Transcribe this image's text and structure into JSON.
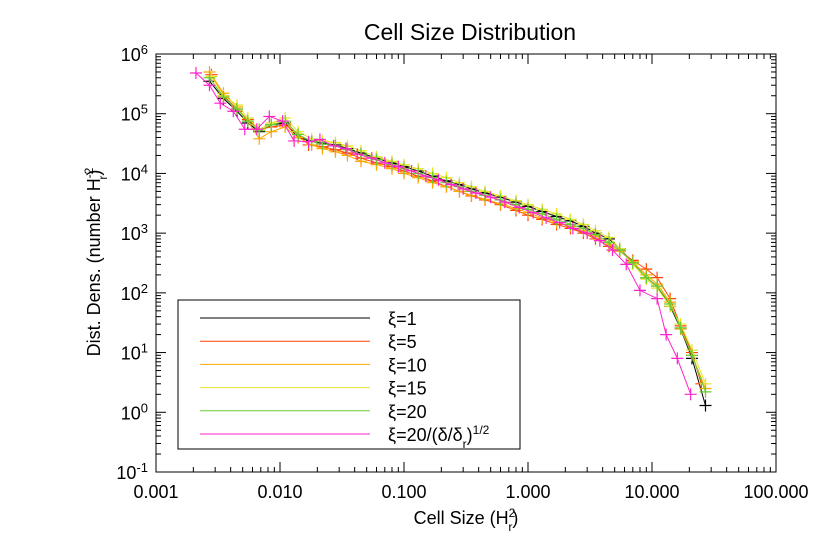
{
  "chart_data": {
    "type": "line",
    "title": "Cell Size Distribution",
    "xlabel": "Cell Size (H",
    "xlabel_sup": "2",
    "xlabel_sub": "r",
    "xlabel_end": ")",
    "ylabel": "Dist. Dens. (number H",
    "ylabel_sup": "-2",
    "ylabel_sub": "r",
    "ylabel_end": ")",
    "x_scale": "log",
    "y_scale": "log",
    "xlim": [
      0.001,
      100
    ],
    "ylim": [
      0.1,
      1000000
    ],
    "x_ticks": [
      {
        "value": 0.001,
        "label": "0.001"
      },
      {
        "value": 0.01,
        "label": "0.010"
      },
      {
        "value": 0.1,
        "label": "0.100"
      },
      {
        "value": 1,
        "label": "1.000"
      },
      {
        "value": 10,
        "label": "10.000"
      },
      {
        "value": 100,
        "label": "100.000"
      }
    ],
    "y_ticks": [
      {
        "value": 0.1,
        "base": "10",
        "exp": "-1"
      },
      {
        "value": 1,
        "base": "10",
        "exp": "0"
      },
      {
        "value": 10,
        "base": "10",
        "exp": "1"
      },
      {
        "value": 100,
        "base": "10",
        "exp": "2"
      },
      {
        "value": 1000,
        "base": "10",
        "exp": "3"
      },
      {
        "value": 10000,
        "base": "10",
        "exp": "4"
      },
      {
        "value": 100000,
        "base": "10",
        "exp": "5"
      },
      {
        "value": 1000000,
        "base": "10",
        "exp": "6"
      }
    ],
    "legend_position": "bottom-left",
    "grid": false,
    "marker": "+",
    "series": [
      {
        "name": "ξ=1",
        "color": "#000000",
        "points": [
          [
            0.0027,
            350000.0
          ],
          [
            0.0035,
            180000.0
          ],
          [
            0.0045,
            110000.0
          ],
          [
            0.0055,
            70000.0
          ],
          [
            0.0068,
            50000.0
          ],
          [
            0.0085,
            65000.0
          ],
          [
            0.011,
            70000.0
          ],
          [
            0.014,
            40000.0
          ],
          [
            0.018,
            35000.0
          ],
          [
            0.022,
            32000.0
          ],
          [
            0.028,
            30000.0
          ],
          [
            0.035,
            26000.0
          ],
          [
            0.045,
            22000.0
          ],
          [
            0.06,
            18000.0
          ],
          [
            0.08,
            15000.0
          ],
          [
            0.1,
            13000.0
          ],
          [
            0.13,
            11000.0
          ],
          [
            0.17,
            9000.0
          ],
          [
            0.22,
            7500.0
          ],
          [
            0.28,
            6500.0
          ],
          [
            0.35,
            5500.0
          ],
          [
            0.45,
            4700.0
          ],
          [
            0.6,
            4000.0
          ],
          [
            0.8,
            3300.0
          ],
          [
            1.0,
            2800.0
          ],
          [
            1.3,
            2300.0
          ],
          [
            1.7,
            1900.0
          ],
          [
            2.2,
            1600.0
          ],
          [
            2.8,
            1300.0
          ],
          [
            3.5,
            1000.0
          ],
          [
            4.5,
            800
          ],
          [
            5.5,
            550
          ],
          [
            7.0,
            320
          ],
          [
            9.0,
            180
          ],
          [
            11.0,
            130
          ],
          [
            14.0,
            60
          ],
          [
            17.0,
            25
          ],
          [
            21.0,
            8
          ],
          [
            27.0,
            1.3
          ]
        ]
      },
      {
        "name": "ξ=5",
        "color": "#ff4500",
        "points": [
          [
            0.0028,
            450000.0
          ],
          [
            0.0035,
            200000.0
          ],
          [
            0.0045,
            120000.0
          ],
          [
            0.0055,
            80000.0
          ],
          [
            0.0068,
            55000.0
          ],
          [
            0.0085,
            60000.0
          ],
          [
            0.011,
            65000.0
          ],
          [
            0.014,
            45000.0
          ],
          [
            0.017,
            30000.0
          ],
          [
            0.022,
            28000.0
          ],
          [
            0.028,
            25000.0
          ],
          [
            0.035,
            22000.0
          ],
          [
            0.045,
            18000.0
          ],
          [
            0.06,
            15000.0
          ],
          [
            0.08,
            13000.0
          ],
          [
            0.1,
            11000.0
          ],
          [
            0.13,
            9000.0
          ],
          [
            0.17,
            7500.0
          ],
          [
            0.22,
            6000.0
          ],
          [
            0.28,
            5000.0
          ],
          [
            0.35,
            4200.0
          ],
          [
            0.45,
            3600.0
          ],
          [
            0.6,
            3000.0
          ],
          [
            0.8,
            2400.0
          ],
          [
            1.0,
            2000.0
          ],
          [
            1.3,
            1700.0
          ],
          [
            1.7,
            1400.0
          ],
          [
            2.2,
            1200.0
          ],
          [
            2.8,
            1000.0
          ],
          [
            3.5,
            800
          ],
          [
            4.5,
            600
          ],
          [
            5.5,
            500
          ],
          [
            7.0,
            350
          ],
          [
            9.0,
            250
          ],
          [
            11.0,
            180
          ],
          [
            14.0,
            80
          ],
          [
            17.0,
            28
          ],
          [
            21.0,
            10
          ],
          [
            25.0,
            3
          ]
        ]
      },
      {
        "name": "ξ=10",
        "color": "#ffa500",
        "points": [
          [
            0.0027,
            500000.0
          ],
          [
            0.0035,
            220000.0
          ],
          [
            0.0045,
            130000.0
          ],
          [
            0.0055,
            75000.0
          ],
          [
            0.0068,
            38000.0
          ],
          [
            0.0085,
            50000.0
          ],
          [
            0.011,
            60000.0
          ],
          [
            0.014,
            40000.0
          ],
          [
            0.018,
            30000.0
          ],
          [
            0.022,
            26000.0
          ],
          [
            0.028,
            23000.0
          ],
          [
            0.035,
            20000.0
          ],
          [
            0.045,
            16000.0
          ],
          [
            0.06,
            14000.0
          ],
          [
            0.08,
            12000.0
          ],
          [
            0.1,
            10000.0
          ],
          [
            0.13,
            8500.0
          ],
          [
            0.17,
            7000.0
          ],
          [
            0.22,
            6000.0
          ],
          [
            0.28,
            5000.0
          ],
          [
            0.35,
            4300.0
          ],
          [
            0.45,
            3700.0
          ],
          [
            0.6,
            3100.0
          ],
          [
            0.8,
            2600.0
          ],
          [
            1.0,
            2200.0
          ],
          [
            1.3,
            1800.0
          ],
          [
            1.7,
            1500.0
          ],
          [
            2.2,
            1300.0
          ],
          [
            2.8,
            1100.0
          ],
          [
            3.5,
            900
          ],
          [
            4.5,
            650
          ],
          [
            5.5,
            500
          ],
          [
            7.0,
            330
          ],
          [
            9.0,
            200
          ],
          [
            11.0,
            140
          ],
          [
            14.0,
            70
          ],
          [
            17.0,
            25
          ],
          [
            21.0,
            9
          ],
          [
            27.0,
            2.5
          ]
        ]
      },
      {
        "name": "ξ=15",
        "color": "#e5e52a",
        "points": [
          [
            0.0028,
            420000.0
          ],
          [
            0.0035,
            200000.0
          ],
          [
            0.0045,
            140000.0
          ],
          [
            0.0055,
            85000.0
          ],
          [
            0.0068,
            55000.0
          ],
          [
            0.0085,
            70000.0
          ],
          [
            0.011,
            85000.0
          ],
          [
            0.014,
            50000.0
          ],
          [
            0.018,
            38000.0
          ],
          [
            0.022,
            35000.0
          ],
          [
            0.028,
            33000.0
          ],
          [
            0.035,
            29000.0
          ],
          [
            0.045,
            24000.0
          ],
          [
            0.06,
            19000.0
          ],
          [
            0.08,
            16000.0
          ],
          [
            0.1,
            14000.0
          ],
          [
            0.13,
            12000.0
          ],
          [
            0.17,
            10000.0
          ],
          [
            0.22,
            8500.0
          ],
          [
            0.28,
            7000.0
          ],
          [
            0.35,
            6000.0
          ],
          [
            0.45,
            5000.0
          ],
          [
            0.6,
            4200.0
          ],
          [
            0.8,
            3500.0
          ],
          [
            1.0,
            3000.0
          ],
          [
            1.3,
            2500.0
          ],
          [
            1.7,
            2100.0
          ],
          [
            2.2,
            1700.0
          ],
          [
            2.8,
            1400.0
          ],
          [
            3.5,
            1100.0
          ],
          [
            4.5,
            850
          ],
          [
            5.5,
            550
          ],
          [
            7.0,
            300
          ],
          [
            9.0,
            170
          ],
          [
            11.0,
            120
          ],
          [
            14.0,
            60
          ],
          [
            17.0,
            30
          ],
          [
            21.0,
            11
          ],
          [
            27.0,
            3
          ]
        ]
      },
      {
        "name": "ξ=20",
        "color": "#66cc33",
        "points": [
          [
            0.0027,
            400000.0
          ],
          [
            0.0035,
            190000.0
          ],
          [
            0.0045,
            120000.0
          ],
          [
            0.0055,
            75000.0
          ],
          [
            0.0068,
            52000.0
          ],
          [
            0.0085,
            65000.0
          ],
          [
            0.011,
            75000.0
          ],
          [
            0.014,
            45000.0
          ],
          [
            0.018,
            34000.0
          ],
          [
            0.022,
            31000.0
          ],
          [
            0.028,
            29000.0
          ],
          [
            0.035,
            25000.0
          ],
          [
            0.045,
            21000.0
          ],
          [
            0.06,
            17000.0
          ],
          [
            0.08,
            14000.0
          ],
          [
            0.1,
            12000.0
          ],
          [
            0.13,
            10000.0
          ],
          [
            0.17,
            8500.0
          ],
          [
            0.22,
            7000.0
          ],
          [
            0.28,
            6000.0
          ],
          [
            0.35,
            5000.0
          ],
          [
            0.45,
            4300.0
          ],
          [
            0.6,
            3600.0
          ],
          [
            0.8,
            3000.0
          ],
          [
            1.0,
            2500.0
          ],
          [
            1.3,
            2100.0
          ],
          [
            1.7,
            1700.0
          ],
          [
            2.2,
            1400.0
          ],
          [
            2.8,
            1200.0
          ],
          [
            3.5,
            950
          ],
          [
            4.5,
            700
          ],
          [
            5.5,
            520
          ],
          [
            7.0,
            320
          ],
          [
            9.0,
            180
          ],
          [
            11.0,
            130
          ],
          [
            14.0,
            65
          ],
          [
            17.0,
            26
          ],
          [
            21.0,
            9
          ],
          [
            27.0,
            2.2
          ]
        ]
      },
      {
        "name": "ξ=20/(δ/δr)",
        "color": "#ff22cc",
        "points": [
          [
            0.0021,
            480000.0
          ],
          [
            0.0027,
            300000.0
          ],
          [
            0.0033,
            150000.0
          ],
          [
            0.0042,
            110000.0
          ],
          [
            0.0052,
            55000.0
          ],
          [
            0.0065,
            55000.0
          ],
          [
            0.0082,
            90000.0
          ],
          [
            0.0105,
            75000.0
          ],
          [
            0.013,
            35000.0
          ],
          [
            0.017,
            34000.0
          ],
          [
            0.021,
            37000.0
          ],
          [
            0.027,
            29000.0
          ],
          [
            0.034,
            26000.0
          ],
          [
            0.042,
            21000.0
          ],
          [
            0.055,
            18000.0
          ],
          [
            0.07,
            15000.0
          ],
          [
            0.09,
            13000.0
          ],
          [
            0.115,
            11000.0
          ],
          [
            0.15,
            9000.0
          ],
          [
            0.19,
            7800.0
          ],
          [
            0.24,
            6500.0
          ],
          [
            0.3,
            5500.0
          ],
          [
            0.38,
            4700.0
          ],
          [
            0.5,
            4000.0
          ],
          [
            0.65,
            3300.0
          ],
          [
            0.85,
            2700.0
          ],
          [
            1.1,
            2200.0
          ],
          [
            1.4,
            1800.0
          ],
          [
            1.8,
            1500.0
          ],
          [
            2.3,
            1200.0
          ],
          [
            3.0,
            1000.0
          ],
          [
            3.8,
            750
          ],
          [
            4.8,
            520
          ],
          [
            6.2,
            300
          ],
          [
            8.0,
            110
          ],
          [
            11.0,
            80
          ],
          [
            13.0,
            20
          ],
          [
            16.0,
            8
          ],
          [
            20.5,
            2
          ]
        ]
      }
    ]
  },
  "legend": [
    {
      "symbol": "ξ",
      "label": "=1"
    },
    {
      "symbol": "ξ",
      "label": "=5"
    },
    {
      "symbol": "ξ",
      "label": "=10"
    },
    {
      "symbol": "ξ",
      "label": "=15"
    },
    {
      "symbol": "ξ",
      "label": "=20"
    },
    {
      "symbol": "ξ",
      "label": "=20/(δ/δ",
      "sub": "r",
      "end": ")",
      "sup": "1/2"
    }
  ]
}
